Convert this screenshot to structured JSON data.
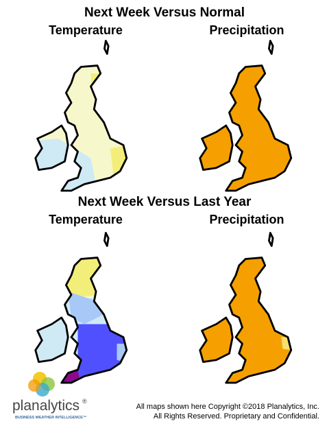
{
  "sections": [
    {
      "title": "Next Week Versus Normal",
      "maps": [
        {
          "label": "Temperature"
        },
        {
          "label": "Precipitation"
        }
      ]
    },
    {
      "title": "Next Week Versus Last Year",
      "maps": [
        {
          "label": "Temperature"
        },
        {
          "label": "Precipitation"
        }
      ]
    }
  ],
  "logo": {
    "name": "planalytics",
    "mark": "®",
    "tagline": "BUSINESS WEATHER INTELLIGENCE™"
  },
  "footer": {
    "lines": [
      "All maps shown here Copyright ©2018 Planalytics, Inc.",
      "All Rights Reserved. Proprietary and Confidential."
    ]
  }
}
